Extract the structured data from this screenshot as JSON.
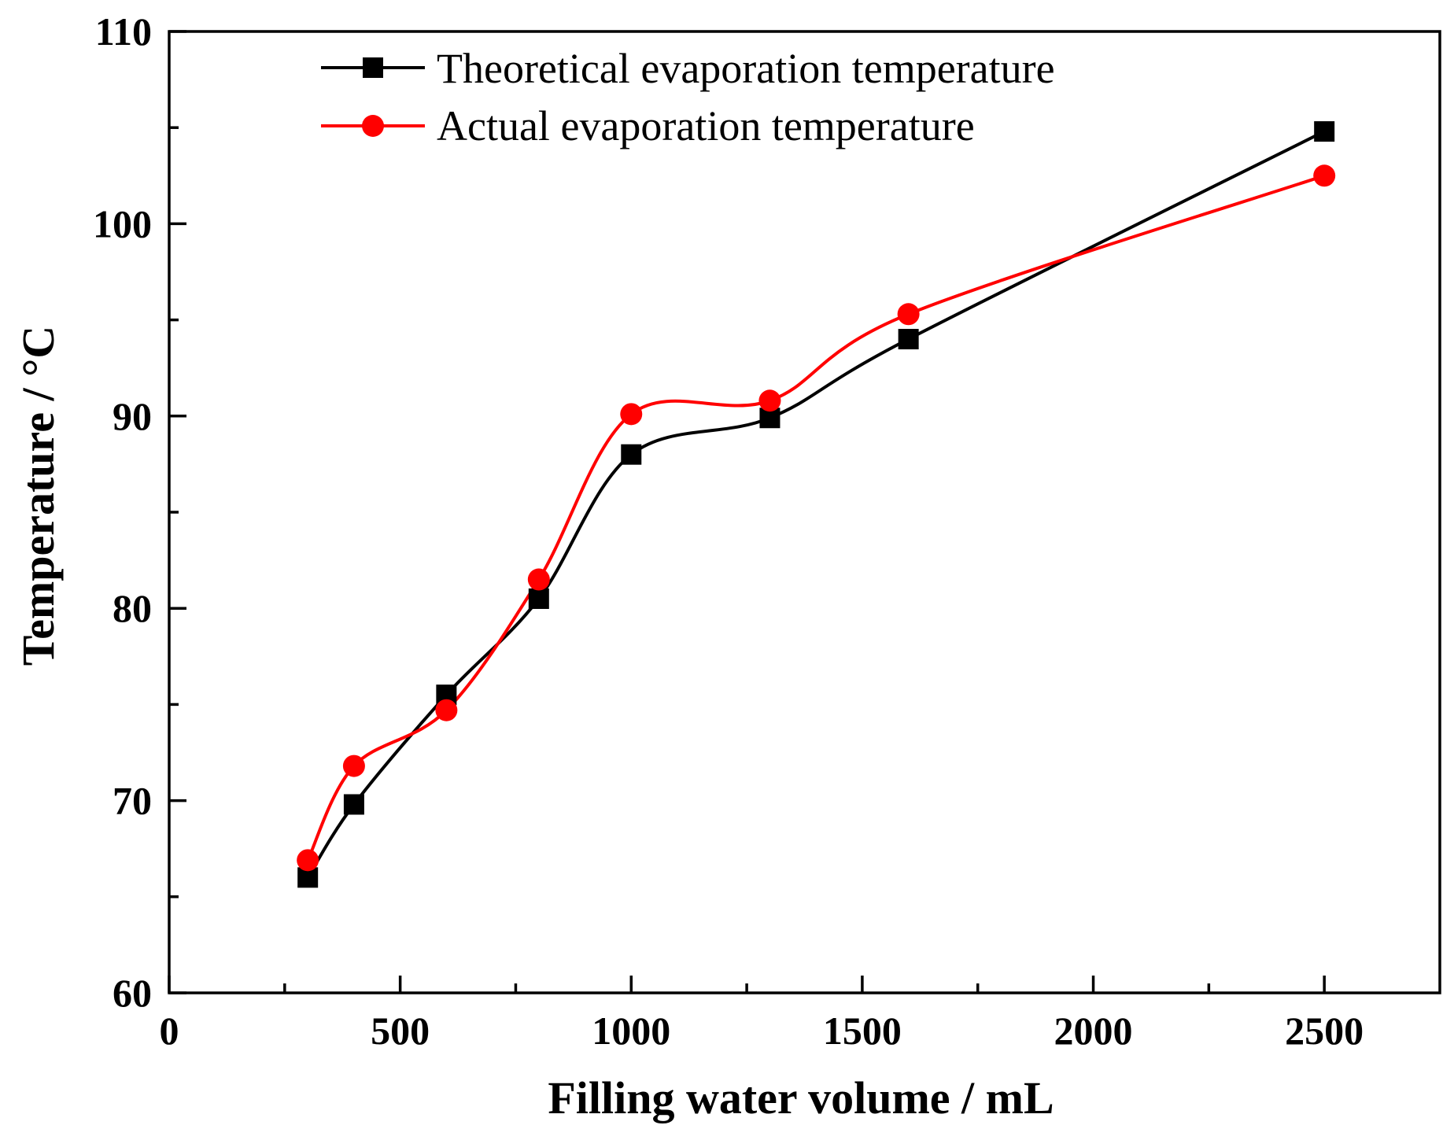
{
  "chart_data": {
    "type": "line",
    "title": "",
    "xlabel": "Filling water volume / mL",
    "ylabel": "Temperature / °C",
    "xlim": [
      0,
      2750
    ],
    "ylim": [
      60,
      110
    ],
    "x_ticks": [
      0,
      500,
      1000,
      1500,
      2000,
      2500
    ],
    "x_tick_labels": [
      "0",
      "500",
      "1000",
      "1500",
      "2000",
      "2500"
    ],
    "x_minor_ticks": [
      250,
      750,
      1250,
      1750,
      2250
    ],
    "y_ticks": [
      60,
      70,
      80,
      90,
      100,
      110
    ],
    "y_tick_labels": [
      "60",
      "70",
      "80",
      "90",
      "100",
      "110"
    ],
    "y_minor_ticks": [
      65,
      75,
      85,
      95,
      105
    ],
    "grid": false,
    "legend_position": "top-left",
    "x": [
      300,
      400,
      600,
      800,
      1000,
      1300,
      1600,
      2500
    ],
    "series": [
      {
        "name": "Theoretical evaporation temperature",
        "color": "#000000",
        "marker": "square",
        "values": [
          66.0,
          69.8,
          75.5,
          80.5,
          88.0,
          89.9,
          94.0,
          104.8
        ]
      },
      {
        "name": "Actual evaporation temperature",
        "color": "#ff0000",
        "marker": "circle",
        "values": [
          66.9,
          71.8,
          74.7,
          81.5,
          90.1,
          90.8,
          95.3,
          102.5
        ]
      }
    ]
  }
}
